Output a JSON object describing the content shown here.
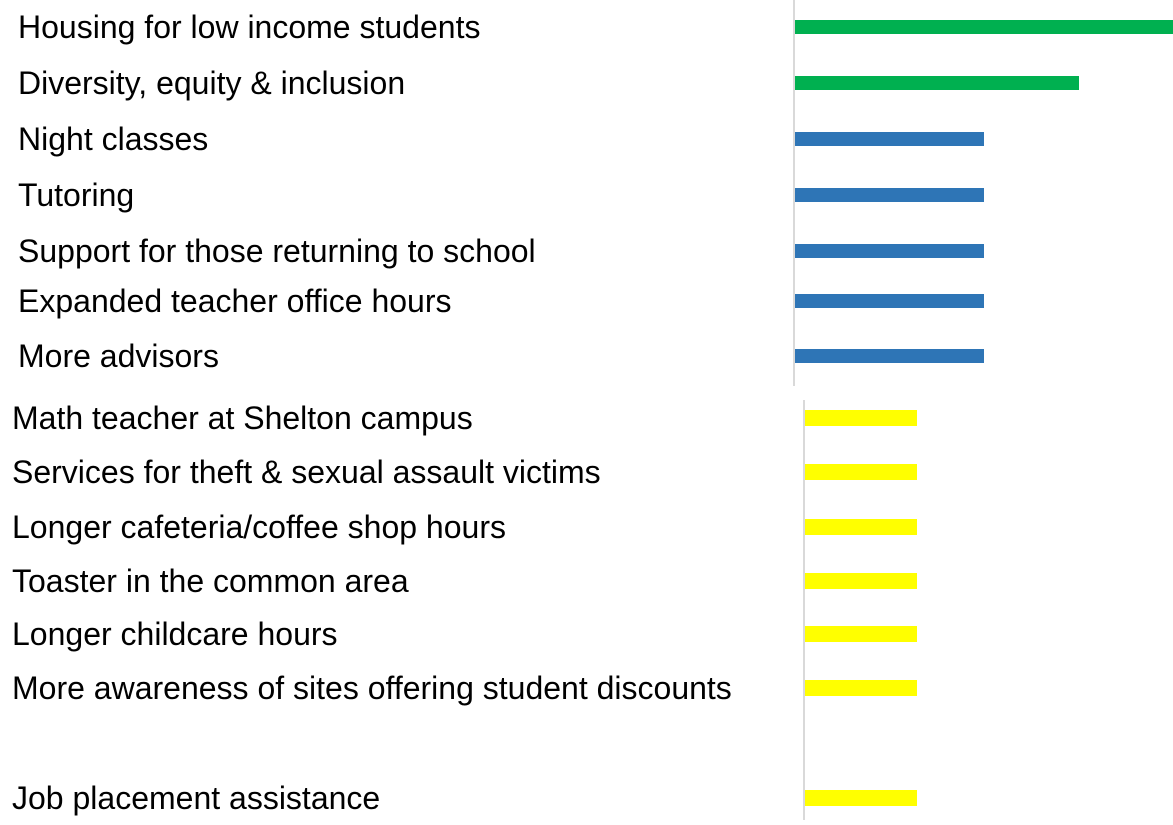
{
  "chart_data": [
    {
      "type": "bar",
      "orientation": "horizontal",
      "categories": [
        "Housing for low income students",
        "Diversity, equity & inclusion",
        "Night classes",
        "Tutoring",
        "Support for those returning to school",
        "Expanded teacher office hours",
        "More advisors"
      ],
      "values": [
        4,
        3,
        2,
        2,
        2,
        2,
        2
      ],
      "colors": [
        "#00b050",
        "#00b050",
        "#2e75b6",
        "#2e75b6",
        "#2e75b6",
        "#2e75b6",
        "#2e75b6"
      ],
      "xlim": [
        0,
        4
      ]
    },
    {
      "type": "bar",
      "orientation": "horizontal",
      "categories": [
        "Math teacher at Shelton campus",
        "Services for theft & sexual assault victims",
        "Longer cafeteria/coffee shop hours",
        "Toaster in the common area",
        "Longer childcare hours",
        "More awareness of sites offering student discounts",
        "Job placement assistance"
      ],
      "values": [
        1,
        1,
        1,
        1,
        1,
        1,
        1
      ],
      "color": "#ffff00",
      "xlim": [
        0,
        1
      ]
    }
  ]
}
